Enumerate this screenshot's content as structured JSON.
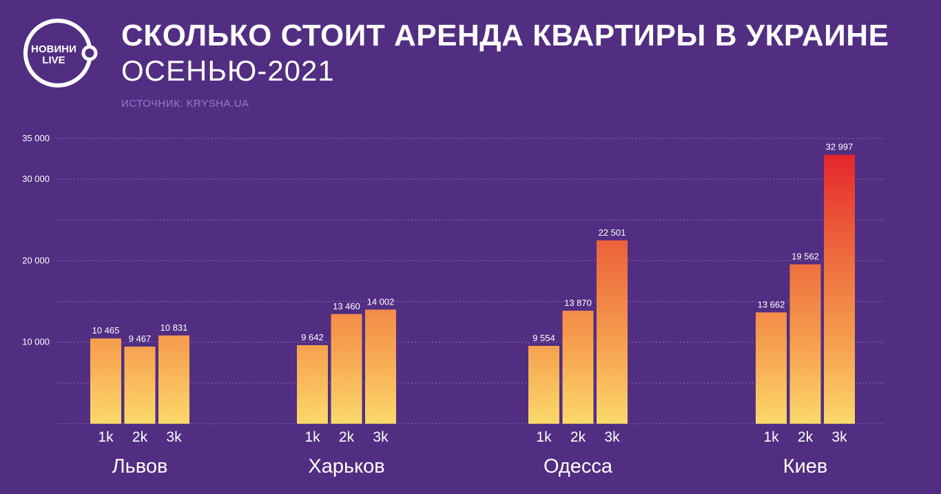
{
  "logo": {
    "line1": "НОВИНИ",
    "line2": "LIVE"
  },
  "header": {
    "title": "СКОЛЬКО СТОИТ АРЕНДА КВАРТИРЫ В УКРАИНЕ",
    "subtitle": "ОСЕНЬЮ-2021",
    "source": "ИСТОЧНИК:  KRYSHA.UA"
  },
  "colors": {
    "background": "#512e82",
    "bar_bottom": "#fbd96b",
    "bar_top_hot": "#e4272c",
    "grid": "#9a7cc8"
  },
  "chart_data": {
    "type": "bar",
    "y_ticks": [
      {
        "value": 10000,
        "label": "10 000"
      },
      {
        "value": 20000,
        "label": "20 000"
      },
      {
        "value": 30000,
        "label": "30 000"
      },
      {
        "value": 35000,
        "label": "35 000"
      }
    ],
    "ylim": [
      0,
      35000
    ],
    "grid": true,
    "groups": [
      {
        "city": "Львов",
        "bars": [
          {
            "category": "1k",
            "value": 10465,
            "label": "10 465"
          },
          {
            "category": "2k",
            "value": 9467,
            "label": "9 467"
          },
          {
            "category": "3k",
            "value": 10831,
            "label": "10 831"
          }
        ]
      },
      {
        "city": "Харьков",
        "bars": [
          {
            "category": "1k",
            "value": 9642,
            "label": "9 642"
          },
          {
            "category": "2k",
            "value": 13460,
            "label": "13 460"
          },
          {
            "category": "3k",
            "value": 14002,
            "label": "14 002"
          }
        ]
      },
      {
        "city": "Одесса",
        "bars": [
          {
            "category": "1k",
            "value": 9554,
            "label": "9 554"
          },
          {
            "category": "2k",
            "value": 13870,
            "label": "13 870"
          },
          {
            "category": "3k",
            "value": 22501,
            "label": "22 501"
          }
        ]
      },
      {
        "city": "Киев",
        "bars": [
          {
            "category": "1k",
            "value": 13662,
            "label": "13 662"
          },
          {
            "category": "2k",
            "value": 19562,
            "label": "19 562"
          },
          {
            "category": "3k",
            "value": 32997,
            "label": "32 997"
          }
        ]
      }
    ]
  }
}
